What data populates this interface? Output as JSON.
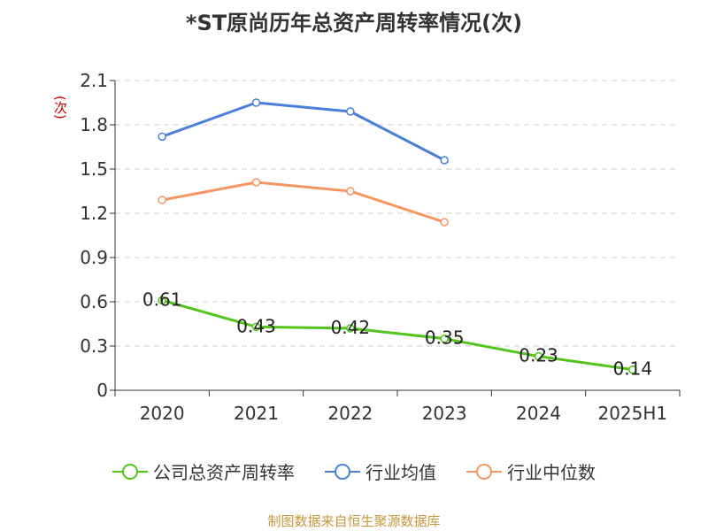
{
  "chart_data": {
    "type": "line",
    "title": "*ST原尚历年总资产周转率情况(次)",
    "ylabel": "(次)",
    "categories": [
      "2020",
      "2021",
      "2022",
      "2023",
      "2024",
      "2025H1"
    ],
    "y_ticks": [
      "0",
      "0.3",
      "0.6",
      "0.9",
      "1.2",
      "1.5",
      "1.8",
      "2.1"
    ],
    "ylim": [
      0,
      2.1
    ],
    "grid": true,
    "legend_position": "bottom",
    "series": [
      {
        "name": "公司总资产周转率",
        "color": "#52c41a",
        "values": [
          0.61,
          0.43,
          0.42,
          0.35,
          0.23,
          0.14
        ],
        "labels": [
          "0.61",
          "0.43",
          "0.42",
          "0.35",
          "0.23",
          "0.14"
        ]
      },
      {
        "name": "行业均值",
        "color": "#4a7fd8",
        "values": [
          1.72,
          1.95,
          1.89,
          1.56,
          null,
          null
        ]
      },
      {
        "name": "行业中位数",
        "color": "#f59562",
        "values": [
          1.29,
          1.41,
          1.35,
          1.14,
          null,
          null
        ]
      }
    ]
  },
  "footer": {
    "source": "制图数据来自恒生聚源数据库"
  }
}
